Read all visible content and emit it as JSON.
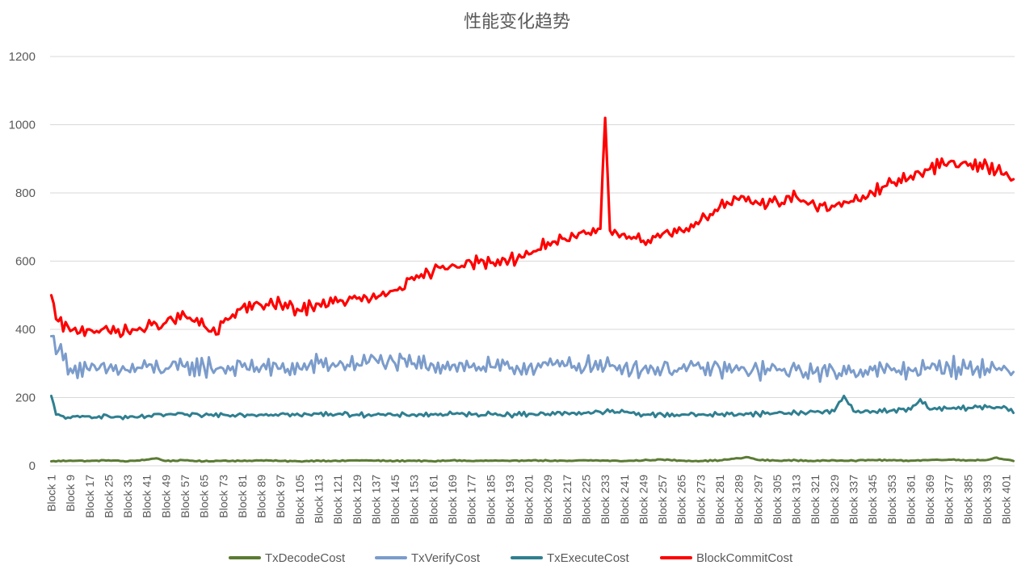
{
  "chart_data": {
    "type": "line",
    "title": "性能变化趋势",
    "xlabel": "",
    "ylabel": "",
    "ylim": [
      0,
      1200
    ],
    "yticks": [
      0,
      200,
      400,
      600,
      800,
      1000,
      1200
    ],
    "grid": true,
    "legend_position": "bottom",
    "x_count": 404,
    "x_label_prefix": "Block ",
    "x_tick_labels": [
      "Block 1",
      "Block 9",
      "Block 17",
      "Block 25",
      "Block 33",
      "Block 41",
      "Block 49",
      "Block 57",
      "Block 65",
      "Block 73",
      "Block 81",
      "Block 89",
      "Block 97",
      "Block 105",
      "Block 113",
      "Block 121",
      "Block 129",
      "Block 137",
      "Block 145",
      "Block 153",
      "Block 161",
      "Block 169",
      "Block 177",
      "Block 185",
      "Block 193",
      "Block 201",
      "Block 209",
      "Block 217",
      "Block 225",
      "Block 233",
      "Block 241",
      "Block 249",
      "Block 257",
      "Block 265",
      "Block 273",
      "Block 281",
      "Block 289",
      "Block 297",
      "Block 305",
      "Block 313",
      "Block 321",
      "Block 329",
      "Block 337",
      "Block 345",
      "Block 353",
      "Block 361",
      "Block 369",
      "Block 377",
      "Block 385",
      "Block 393",
      "Block 401"
    ],
    "series": [
      {
        "name": "TxDecodeCost",
        "color": "#5b7b33",
        "anchors": [
          [
            1,
            13
          ],
          [
            9,
            15
          ],
          [
            17,
            14
          ],
          [
            25,
            16
          ],
          [
            33,
            13
          ],
          [
            41,
            18
          ],
          [
            45,
            22
          ],
          [
            49,
            14
          ],
          [
            57,
            16
          ],
          [
            65,
            13
          ],
          [
            73,
            15
          ],
          [
            81,
            14
          ],
          [
            89,
            16
          ],
          [
            97,
            14
          ],
          [
            105,
            13
          ],
          [
            113,
            15
          ],
          [
            121,
            14
          ],
          [
            129,
            16
          ],
          [
            137,
            15
          ],
          [
            145,
            14
          ],
          [
            153,
            15
          ],
          [
            161,
            13
          ],
          [
            169,
            16
          ],
          [
            177,
            14
          ],
          [
            185,
            15
          ],
          [
            193,
            14
          ],
          [
            201,
            16
          ],
          [
            209,
            15
          ],
          [
            217,
            14
          ],
          [
            225,
            16
          ],
          [
            233,
            15
          ],
          [
            241,
            14
          ],
          [
            249,
            16
          ],
          [
            257,
            18
          ],
          [
            265,
            15
          ],
          [
            273,
            14
          ],
          [
            281,
            16
          ],
          [
            289,
            22
          ],
          [
            293,
            25
          ],
          [
            297,
            17
          ],
          [
            305,
            15
          ],
          [
            313,
            16
          ],
          [
            321,
            14
          ],
          [
            329,
            16
          ],
          [
            337,
            15
          ],
          [
            345,
            17
          ],
          [
            353,
            16
          ],
          [
            361,
            15
          ],
          [
            369,
            17
          ],
          [
            377,
            18
          ],
          [
            385,
            16
          ],
          [
            393,
            17
          ],
          [
            397,
            24
          ],
          [
            401,
            18
          ],
          [
            404,
            14
          ]
        ],
        "noise": 2.5
      },
      {
        "name": "TxVerifyCost",
        "color": "#7b9ccb",
        "anchors": [
          [
            1,
            380
          ],
          [
            9,
            285
          ],
          [
            17,
            280
          ],
          [
            25,
            285
          ],
          [
            33,
            280
          ],
          [
            41,
            290
          ],
          [
            49,
            285
          ],
          [
            57,
            290
          ],
          [
            65,
            290
          ],
          [
            73,
            285
          ],
          [
            81,
            290
          ],
          [
            89,
            290
          ],
          [
            97,
            285
          ],
          [
            105,
            285
          ],
          [
            113,
            300
          ],
          [
            121,
            295
          ],
          [
            129,
            300
          ],
          [
            137,
            310
          ],
          [
            145,
            300
          ],
          [
            153,
            300
          ],
          [
            161,
            295
          ],
          [
            169,
            295
          ],
          [
            177,
            290
          ],
          [
            185,
            290
          ],
          [
            193,
            285
          ],
          [
            201,
            290
          ],
          [
            209,
            295
          ],
          [
            217,
            295
          ],
          [
            225,
            295
          ],
          [
            233,
            290
          ],
          [
            241,
            290
          ],
          [
            249,
            285
          ],
          [
            257,
            285
          ],
          [
            265,
            285
          ],
          [
            273,
            285
          ],
          [
            281,
            285
          ],
          [
            289,
            280
          ],
          [
            297,
            280
          ],
          [
            305,
            280
          ],
          [
            313,
            280
          ],
          [
            321,
            275
          ],
          [
            329,
            275
          ],
          [
            337,
            280
          ],
          [
            345,
            280
          ],
          [
            353,
            280
          ],
          [
            361,
            280
          ],
          [
            369,
            285
          ],
          [
            377,
            290
          ],
          [
            385,
            285
          ],
          [
            393,
            285
          ],
          [
            401,
            285
          ],
          [
            404,
            275
          ]
        ],
        "noise": 45
      },
      {
        "name": "TxExecuteCost",
        "color": "#2f7f90",
        "anchors": [
          [
            1,
            205
          ],
          [
            3,
            150
          ],
          [
            9,
            140
          ],
          [
            17,
            145
          ],
          [
            25,
            145
          ],
          [
            33,
            140
          ],
          [
            41,
            145
          ],
          [
            49,
            150
          ],
          [
            57,
            150
          ],
          [
            65,
            148
          ],
          [
            73,
            150
          ],
          [
            81,
            150
          ],
          [
            89,
            150
          ],
          [
            97,
            152
          ],
          [
            105,
            148
          ],
          [
            113,
            152
          ],
          [
            121,
            152
          ],
          [
            129,
            150
          ],
          [
            137,
            150
          ],
          [
            145,
            148
          ],
          [
            153,
            150
          ],
          [
            161,
            150
          ],
          [
            169,
            152
          ],
          [
            177,
            150
          ],
          [
            185,
            152
          ],
          [
            193,
            150
          ],
          [
            201,
            152
          ],
          [
            209,
            152
          ],
          [
            217,
            155
          ],
          [
            225,
            155
          ],
          [
            233,
            158
          ],
          [
            241,
            158
          ],
          [
            249,
            150
          ],
          [
            257,
            150
          ],
          [
            265,
            150
          ],
          [
            273,
            150
          ],
          [
            281,
            150
          ],
          [
            289,
            152
          ],
          [
            297,
            152
          ],
          [
            305,
            155
          ],
          [
            313,
            155
          ],
          [
            321,
            158
          ],
          [
            329,
            160
          ],
          [
            333,
            205
          ],
          [
            337,
            160
          ],
          [
            345,
            160
          ],
          [
            353,
            162
          ],
          [
            361,
            165
          ],
          [
            365,
            195
          ],
          [
            369,
            165
          ],
          [
            377,
            168
          ],
          [
            385,
            170
          ],
          [
            393,
            172
          ],
          [
            401,
            170
          ],
          [
            404,
            155
          ]
        ],
        "noise": 11
      },
      {
        "name": "BlockCommitCost",
        "color": "#ff0000",
        "anchors": [
          [
            1,
            500
          ],
          [
            3,
            430
          ],
          [
            9,
            395
          ],
          [
            17,
            400
          ],
          [
            25,
            395
          ],
          [
            33,
            395
          ],
          [
            41,
            405
          ],
          [
            49,
            420
          ],
          [
            57,
            440
          ],
          [
            65,
            410
          ],
          [
            70,
            385
          ],
          [
            73,
            420
          ],
          [
            81,
            465
          ],
          [
            89,
            470
          ],
          [
            97,
            475
          ],
          [
            105,
            455
          ],
          [
            113,
            475
          ],
          [
            121,
            480
          ],
          [
            129,
            490
          ],
          [
            137,
            490
          ],
          [
            145,
            515
          ],
          [
            153,
            545
          ],
          [
            161,
            570
          ],
          [
            169,
            590
          ],
          [
            177,
            595
          ],
          [
            185,
            595
          ],
          [
            193,
            605
          ],
          [
            201,
            620
          ],
          [
            209,
            655
          ],
          [
            217,
            660
          ],
          [
            225,
            680
          ],
          [
            231,
            695
          ],
          [
            233,
            1020
          ],
          [
            235,
            690
          ],
          [
            241,
            680
          ],
          [
            249,
            660
          ],
          [
            257,
            680
          ],
          [
            265,
            690
          ],
          [
            273,
            720
          ],
          [
            281,
            760
          ],
          [
            289,
            780
          ],
          [
            297,
            770
          ],
          [
            305,
            775
          ],
          [
            313,
            790
          ],
          [
            321,
            760
          ],
          [
            329,
            760
          ],
          [
            337,
            775
          ],
          [
            345,
            800
          ],
          [
            353,
            830
          ],
          [
            361,
            850
          ],
          [
            369,
            870
          ],
          [
            377,
            890
          ],
          [
            385,
            880
          ],
          [
            393,
            880
          ],
          [
            401,
            860
          ],
          [
            404,
            840
          ]
        ],
        "noise": 30
      }
    ]
  },
  "legend": {
    "items": [
      "TxDecodeCost",
      "TxVerifyCost",
      "TxExecuteCost",
      "BlockCommitCost"
    ]
  }
}
